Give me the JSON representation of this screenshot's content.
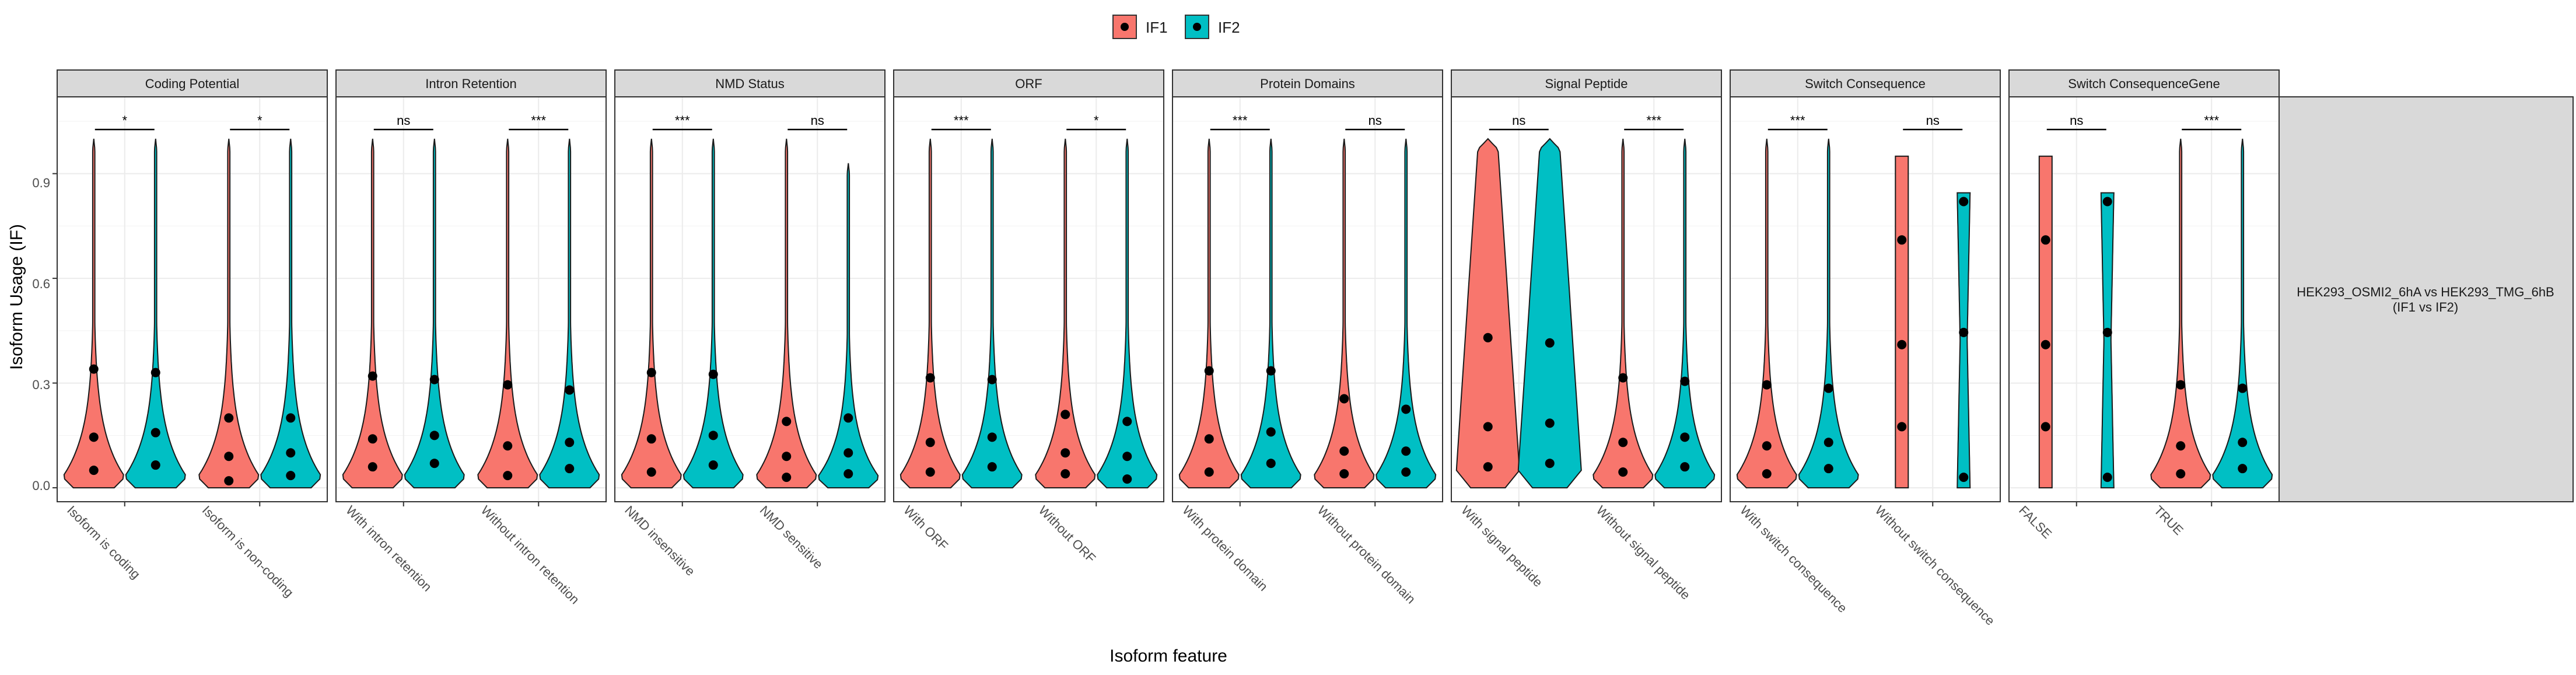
{
  "legend": {
    "title": "",
    "items": [
      {
        "label": "IF1",
        "color": "#F8766D"
      },
      {
        "label": "IF2",
        "color": "#00BFC4"
      }
    ]
  },
  "axis": {
    "ylabel": "Isoform Usage (IF)",
    "xlabel": "Isoform feature",
    "yticks": [
      "0.0",
      "0.3",
      "0.6",
      "0.9"
    ]
  },
  "strip_right": {
    "line1": "HEK293_OSMI2_6hA vs HEK293_TMG_6hB",
    "line2": "(IF1 vs IF2)"
  },
  "chart_data": {
    "type": "violin",
    "ylim": [
      -0.04,
      1.12
    ],
    "grid": true,
    "legend_position": "top",
    "series": [
      "IF1",
      "IF2"
    ],
    "panels": [
      {
        "facet": "Coding Potential",
        "groups": [
          {
            "category": "Isoform is coding",
            "significance": "*",
            "IF1": {
              "quantiles": [
                0.05,
                0.145,
                0.34
              ],
              "max": 1.0,
              "shape": "wide-low"
            },
            "IF2": {
              "quantiles": [
                0.065,
                0.158,
                0.33
              ],
              "max": 1.0,
              "shape": "wide-low"
            }
          },
          {
            "category": "Isoform is non-coding",
            "significance": "*",
            "IF1": {
              "quantiles": [
                0.02,
                0.09,
                0.2
              ],
              "max": 1.0,
              "shape": "wide-low"
            },
            "IF2": {
              "quantiles": [
                0.035,
                0.1,
                0.2
              ],
              "max": 1.0,
              "shape": "wide-low"
            }
          }
        ]
      },
      {
        "facet": "Intron Retention",
        "groups": [
          {
            "category": "With intron retention",
            "significance": "ns",
            "IF1": {
              "quantiles": [
                0.06,
                0.14,
                0.32
              ],
              "max": 1.0,
              "shape": "wide-low"
            },
            "IF2": {
              "quantiles": [
                0.07,
                0.15,
                0.31
              ],
              "max": 1.0,
              "shape": "wide-low"
            }
          },
          {
            "category": "Without intron retention",
            "significance": "***",
            "IF1": {
              "quantiles": [
                0.035,
                0.12,
                0.295
              ],
              "max": 1.0,
              "shape": "wide-low"
            },
            "IF2": {
              "quantiles": [
                0.055,
                0.13,
                0.28
              ],
              "max": 1.0,
              "shape": "wide-low"
            }
          }
        ]
      },
      {
        "facet": "NMD Status",
        "groups": [
          {
            "category": "NMD insensitive",
            "significance": "***",
            "IF1": {
              "quantiles": [
                0.045,
                0.14,
                0.33
              ],
              "max": 1.0,
              "shape": "wide-low"
            },
            "IF2": {
              "quantiles": [
                0.065,
                0.15,
                0.325
              ],
              "max": 1.0,
              "shape": "wide-low"
            }
          },
          {
            "category": "NMD sensitive",
            "significance": "ns",
            "IF1": {
              "quantiles": [
                0.03,
                0.09,
                0.19
              ],
              "max": 1.0,
              "shape": "wide-low"
            },
            "IF2": {
              "quantiles": [
                0.04,
                0.1,
                0.2
              ],
              "max": 0.93,
              "shape": "wide-low"
            }
          }
        ]
      },
      {
        "facet": "ORF",
        "groups": [
          {
            "category": "With ORF",
            "significance": "***",
            "IF1": {
              "quantiles": [
                0.045,
                0.13,
                0.315
              ],
              "max": 1.0,
              "shape": "wide-low"
            },
            "IF2": {
              "quantiles": [
                0.06,
                0.145,
                0.31
              ],
              "max": 1.0,
              "shape": "wide-low"
            }
          },
          {
            "category": "Without ORF",
            "significance": "*",
            "IF1": {
              "quantiles": [
                0.04,
                0.1,
                0.21
              ],
              "max": 1.0,
              "shape": "wide-low"
            },
            "IF2": {
              "quantiles": [
                0.025,
                0.09,
                0.19
              ],
              "max": 1.0,
              "shape": "wide-low"
            }
          }
        ]
      },
      {
        "facet": "Protein Domains",
        "groups": [
          {
            "category": "With protein domain",
            "significance": "***",
            "IF1": {
              "quantiles": [
                0.045,
                0.14,
                0.335
              ],
              "max": 1.0,
              "shape": "wide-low"
            },
            "IF2": {
              "quantiles": [
                0.07,
                0.16,
                0.335
              ],
              "max": 1.0,
              "shape": "wide-low"
            }
          },
          {
            "category": "Without protein domain",
            "significance": "ns",
            "IF1": {
              "quantiles": [
                0.04,
                0.105,
                0.255
              ],
              "max": 1.0,
              "shape": "wide-low"
            },
            "IF2": {
              "quantiles": [
                0.045,
                0.105,
                0.225
              ],
              "max": 1.0,
              "shape": "wide-low"
            }
          }
        ]
      },
      {
        "facet": "Signal Peptide",
        "groups": [
          {
            "category": "With signal peptide",
            "significance": "ns",
            "IF1": {
              "quantiles": [
                0.06,
                0.175,
                0.43
              ],
              "max": 1.0,
              "shape": "uniform"
            },
            "IF2": {
              "quantiles": [
                0.07,
                0.185,
                0.415
              ],
              "max": 1.0,
              "shape": "uniform"
            }
          },
          {
            "category": "Without signal peptide",
            "significance": "***",
            "IF1": {
              "quantiles": [
                0.045,
                0.13,
                0.315
              ],
              "max": 1.0,
              "shape": "wide-low"
            },
            "IF2": {
              "quantiles": [
                0.06,
                0.145,
                0.305
              ],
              "max": 1.0,
              "shape": "wide-low"
            }
          }
        ]
      },
      {
        "facet": "Switch Consequence",
        "groups": [
          {
            "category": "With switch consequence",
            "significance": "***",
            "IF1": {
              "quantiles": [
                0.04,
                0.12,
                0.295
              ],
              "max": 1.0,
              "shape": "wide-low"
            },
            "IF2": {
              "quantiles": [
                0.055,
                0.13,
                0.285
              ],
              "max": 1.0,
              "shape": "wide-low"
            }
          },
          {
            "category": "Without switch consequence",
            "significance": "ns",
            "IF1": {
              "quantiles": [
                0.175,
                0.41,
                0.71
              ],
              "max": 0.95,
              "shape": "bar"
            },
            "IF2": {
              "quantiles": [
                0.03,
                0.445,
                0.82
              ],
              "max": 0.845,
              "shape": "hourglass"
            }
          }
        ]
      },
      {
        "facet": "Switch ConsequenceGene",
        "groups": [
          {
            "category": "FALSE",
            "significance": "ns",
            "IF1": {
              "quantiles": [
                0.175,
                0.41,
                0.71
              ],
              "max": 0.95,
              "shape": "bar"
            },
            "IF2": {
              "quantiles": [
                0.03,
                0.445,
                0.82
              ],
              "max": 0.845,
              "shape": "hourglass"
            }
          },
          {
            "category": "TRUE",
            "significance": "***",
            "IF1": {
              "quantiles": [
                0.04,
                0.12,
                0.295
              ],
              "max": 1.0,
              "shape": "wide-low"
            },
            "IF2": {
              "quantiles": [
                0.055,
                0.13,
                0.285
              ],
              "max": 1.0,
              "shape": "wide-low"
            }
          }
        ]
      }
    ]
  }
}
